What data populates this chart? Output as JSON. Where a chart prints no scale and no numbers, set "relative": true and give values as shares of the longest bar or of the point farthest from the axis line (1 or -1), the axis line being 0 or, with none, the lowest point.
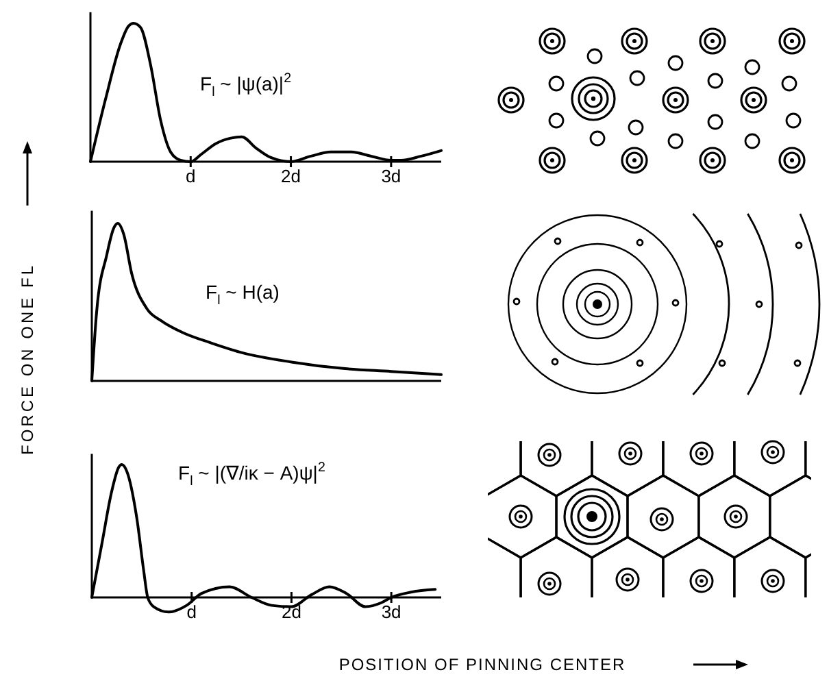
{
  "chart_data": [
    {
      "type": "line",
      "relative": true,
      "color": "#000000",
      "xlim": [
        0,
        3.5
      ],
      "xticks": [
        {
          "value": 1,
          "label": "d"
        },
        {
          "value": 2,
          "label": "2d"
        },
        {
          "value": 3,
          "label": "3d"
        }
      ],
      "annotations": [
        "F$_{l}$ ~ |ψ(a)|$^{2}$"
      ],
      "x": [
        0,
        0.15,
        0.3,
        0.38,
        0.43,
        0.5,
        0.6,
        0.7,
        0.8,
        0.9,
        1.0,
        1.1,
        1.25,
        1.4,
        1.51,
        1.65,
        1.8,
        2.0,
        2.2,
        2.4,
        2.6,
        2.8,
        3.0,
        3.1,
        3.3,
        3.5
      ],
      "values": [
        0,
        0.45,
        0.85,
        0.98,
        1,
        0.97,
        0.7,
        0.3,
        0.07,
        0.01,
        0,
        0.05,
        0.13,
        0.17,
        0.18,
        0.1,
        0.03,
        0,
        0.04,
        0.07,
        0.07,
        0.04,
        0.01,
        0.01,
        0.04,
        0.08
      ]
    },
    {
      "type": "line",
      "relative": true,
      "color": "#000000",
      "xlim": [
        0,
        3.5
      ],
      "ylabel": "FORCE ON ONE FL",
      "annotations": [
        "F$_{l}$ ~ H(a)"
      ],
      "x": [
        0,
        0.05,
        0.15,
        0.22,
        0.26,
        0.32,
        0.4,
        0.55,
        0.7,
        0.9,
        1.2,
        1.5,
        2.0,
        2.5,
        3.0,
        3.5
      ],
      "values": [
        0,
        0.45,
        0.8,
        0.97,
        1,
        0.93,
        0.68,
        0.46,
        0.38,
        0.31,
        0.24,
        0.18,
        0.12,
        0.08,
        0.06,
        0.04
      ]
    },
    {
      "type": "line",
      "relative": true,
      "color": "#000000",
      "xlim": [
        0,
        3.5
      ],
      "xticks": [
        {
          "value": 1,
          "label": "d"
        },
        {
          "value": 2,
          "label": "2d"
        },
        {
          "value": 3,
          "label": "3d"
        }
      ],
      "xlabel": "POSITION OF PINNING CENTER",
      "annotations": [
        "F$_{l}$ ~ |(∇/iκ − A)ψ|$^{2}$"
      ],
      "x": [
        0,
        0.1,
        0.2,
        0.27,
        0.3,
        0.35,
        0.45,
        0.52,
        0.56,
        0.62,
        0.77,
        0.95,
        1.1,
        1.38,
        1.6,
        1.8,
        2.0,
        2.2,
        2.38,
        2.55,
        2.74,
        2.9,
        3.0,
        3.2,
        3.44
      ],
      "values": [
        0,
        0.4,
        0.8,
        0.98,
        1,
        0.95,
        0.6,
        0.2,
        0,
        -0.07,
        -0.11,
        -0.06,
        0.03,
        0.08,
        0,
        -0.06,
        -0.07,
        0.02,
        0.08,
        0.03,
        -0.07,
        -0.04,
        0,
        0.04,
        0.06
      ]
    }
  ]
}
